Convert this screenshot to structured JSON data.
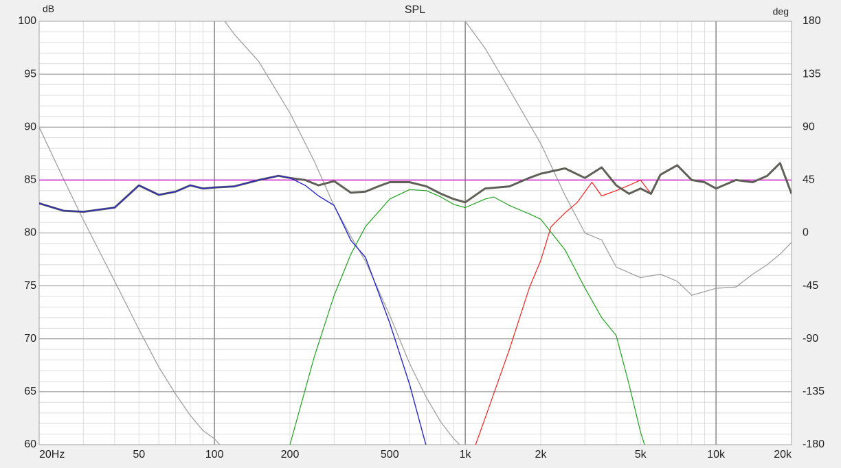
{
  "chart_data": {
    "type": "line",
    "title": "SPL",
    "ylabel": "dB",
    "y2label": "deg",
    "xscale": "log",
    "grid": true,
    "minor_grid": true,
    "xlim": [
      20,
      20000
    ],
    "xticks": [
      {
        "value": 20,
        "label": "20Hz"
      },
      50,
      100,
      200,
      500,
      {
        "value": 1000,
        "label": "1k"
      },
      {
        "value": 2000,
        "label": "2k"
      },
      {
        "value": 5000,
        "label": "5k"
      },
      {
        "value": 10000,
        "label": "10k"
      },
      {
        "value": 20000,
        "label": "20k"
      }
    ],
    "ylim": [
      60,
      100
    ],
    "yticks": [
      60,
      65,
      70,
      75,
      80,
      85,
      90,
      95,
      100
    ],
    "y2lim": [
      -180,
      180
    ],
    "y2ticks": [
      -180,
      -135,
      -90,
      -45,
      0,
      45,
      90,
      135,
      180
    ],
    "series": [
      {
        "color": "#a0a0a0",
        "width": 1.3,
        "axis": "y2",
        "x": [
          20,
          25,
          30,
          40,
          50,
          60,
          70,
          80,
          90,
          100,
          105,
          108,
          110,
          120,
          150,
          200,
          250,
          300,
          350,
          400,
          500,
          600,
          700,
          800,
          900,
          950,
          980,
          1000,
          1200,
          1500,
          2000,
          2500,
          3000,
          3500,
          4000,
          5000,
          6000,
          7000,
          8000,
          10000,
          12000,
          14000,
          16000,
          18000,
          20000
        ],
        "values": [
          90,
          46,
          11,
          -41,
          -82,
          -114,
          -137,
          -155,
          -168,
          -175,
          -180,
          null,
          180,
          169,
          146,
          102,
          61,
          23,
          -3,
          -24,
          -70,
          -111,
          -140,
          -161,
          -175,
          -180,
          null,
          180,
          157,
          122,
          76,
          32,
          0,
          -6,
          -29,
          -38,
          -35,
          -41,
          -53,
          -47,
          -46,
          -35,
          -27,
          -18,
          -8
        ]
      },
      {
        "color": "#d020d0",
        "width": 1.5,
        "x": [
          20,
          20000
        ],
        "values": [
          85,
          85
        ]
      },
      {
        "color": "#20a020",
        "width": 1.2,
        "x": [
          200,
          250,
          300,
          350,
          400,
          500,
          600,
          700,
          800,
          900,
          1000,
          1200,
          1300,
          1500,
          1800,
          2000,
          2500,
          3000,
          3500,
          4000,
          4500,
          5000,
          5200
        ],
        "values": [
          60,
          68.3,
          74.1,
          78,
          80.6,
          83.2,
          84.1,
          84,
          83.4,
          82.7,
          82.4,
          83.2,
          83.4,
          82.6,
          81.8,
          81.3,
          78.4,
          74.8,
          72,
          70.3,
          65.7,
          61.2,
          59.9
        ]
      },
      {
        "color": "#f02020",
        "width": 1.2,
        "x": [
          1100,
          1200,
          1500,
          1800,
          2000,
          2200,
          2500,
          2800,
          3200,
          3500,
          4000,
          4500,
          5000,
          5500,
          6000,
          7000,
          8000,
          9000,
          10000,
          12000,
          14000,
          16000,
          18000,
          20000
        ],
        "values": [
          60,
          62.5,
          69,
          74.8,
          77.4,
          80.6,
          81.9,
          82.9,
          84.8,
          83.5,
          84,
          84.5,
          85,
          83.7,
          85.5,
          86.4,
          85,
          84.8,
          84.2,
          85,
          84.8,
          85.4,
          86.6,
          83.7
        ]
      },
      {
        "color": "#606058",
        "width": 3,
        "x": [
          20,
          25,
          30,
          40,
          50,
          60,
          70,
          80,
          90,
          100,
          120,
          150,
          180,
          200,
          230,
          260,
          300,
          350,
          400,
          450,
          500,
          600,
          700,
          800,
          900,
          1000,
          1200,
          1500,
          1800,
          2000,
          2500,
          3000,
          3500,
          4000,
          4500,
          5000,
          5500,
          6000,
          7000,
          8000,
          9000,
          10000,
          12000,
          14000,
          16000,
          18000,
          20000
        ],
        "values": [
          82.8,
          82.1,
          82,
          82.4,
          84.5,
          83.6,
          83.9,
          84.5,
          84.2,
          84.3,
          84.4,
          85,
          85.4,
          85.2,
          85,
          84.5,
          84.9,
          83.8,
          83.9,
          84.4,
          84.8,
          84.8,
          84.4,
          83.7,
          83.2,
          82.9,
          84.2,
          84.4,
          85.2,
          85.6,
          86.1,
          85.2,
          86.2,
          84.5,
          83.7,
          84.2,
          83.7,
          85.5,
          86.4,
          85,
          84.8,
          84.2,
          85,
          84.8,
          85.4,
          86.6,
          83.7
        ]
      },
      {
        "color": "#2828c8",
        "width": 1.4,
        "x": [
          20,
          25,
          30,
          40,
          50,
          60,
          70,
          80,
          90,
          100,
          120,
          150,
          180,
          200,
          230,
          260,
          300,
          350,
          400,
          500,
          600,
          700
        ],
        "values": [
          82.8,
          82.1,
          82,
          82.4,
          84.5,
          83.6,
          83.9,
          84.5,
          84.2,
          84.3,
          84.4,
          85,
          85.4,
          85.2,
          84.5,
          83.5,
          82.6,
          79.3,
          77.7,
          71.5,
          65.7,
          59.8
        ]
      }
    ]
  }
}
